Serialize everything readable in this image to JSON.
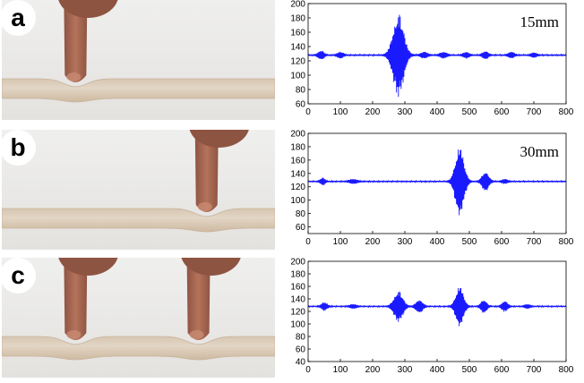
{
  "panels": [
    {
      "label": "a",
      "annotation": "15mm",
      "fingers": [
        0.27
      ],
      "chart_data": {
        "type": "line",
        "xlim": [
          0,
          800
        ],
        "ylim": [
          60,
          200
        ],
        "yticks": [
          60,
          80,
          100,
          120,
          140,
          160,
          180,
          200
        ],
        "xticks": [
          0,
          100,
          200,
          300,
          400,
          500,
          600,
          700,
          800
        ],
        "baseline": 128,
        "bursts": [
          {
            "center": 40,
            "width": 12,
            "amplitude": 6
          },
          {
            "center": 100,
            "width": 12,
            "amplitude": 4
          },
          {
            "center": 280,
            "width": 22,
            "amplitude": 58
          },
          {
            "center": 360,
            "width": 14,
            "amplitude": 4
          },
          {
            "center": 420,
            "width": 14,
            "amplitude": 4
          },
          {
            "center": 490,
            "width": 12,
            "amplitude": 4
          },
          {
            "center": 550,
            "width": 12,
            "amplitude": 5
          },
          {
            "center": 630,
            "width": 12,
            "amplitude": 4
          },
          {
            "center": 700,
            "width": 12,
            "amplitude": 3
          }
        ],
        "grid": false
      }
    },
    {
      "label": "b",
      "annotation": "30mm",
      "fingers": [
        0.75
      ],
      "chart_data": {
        "type": "line",
        "xlim": [
          0,
          800
        ],
        "ylim": [
          50,
          200
        ],
        "yticks": [
          60,
          80,
          100,
          120,
          140,
          160,
          180,
          200
        ],
        "xticks": [
          0,
          100,
          200,
          300,
          400,
          500,
          600,
          700,
          800
        ],
        "baseline": 128,
        "bursts": [
          {
            "center": 45,
            "width": 10,
            "amplitude": 5
          },
          {
            "center": 140,
            "width": 16,
            "amplitude": 3
          },
          {
            "center": 470,
            "width": 18,
            "amplitude": 52
          },
          {
            "center": 550,
            "width": 14,
            "amplitude": 14
          },
          {
            "center": 610,
            "width": 12,
            "amplitude": 3
          }
        ],
        "grid": false
      }
    },
    {
      "label": "c",
      "annotation": "",
      "fingers": [
        0.27,
        0.72
      ],
      "chart_data": {
        "type": "line",
        "xlim": [
          0,
          800
        ],
        "ylim": [
          40,
          200
        ],
        "yticks": [
          40,
          60,
          80,
          100,
          120,
          140,
          160,
          180,
          200
        ],
        "xticks": [
          0,
          100,
          200,
          300,
          400,
          500,
          600,
          700,
          800
        ],
        "baseline": 128,
        "bursts": [
          {
            "center": 50,
            "width": 12,
            "amplitude": 6
          },
          {
            "center": 140,
            "width": 14,
            "amplitude": 3
          },
          {
            "center": 280,
            "width": 18,
            "amplitude": 24
          },
          {
            "center": 345,
            "width": 14,
            "amplitude": 10
          },
          {
            "center": 470,
            "width": 16,
            "amplitude": 32
          },
          {
            "center": 545,
            "width": 12,
            "amplitude": 10
          },
          {
            "center": 610,
            "width": 12,
            "amplitude": 8
          },
          {
            "center": 680,
            "width": 12,
            "amplitude": 3
          }
        ],
        "grid": false
      }
    }
  ],
  "colors": {
    "signal": "#1a1aff",
    "axis": "#000000",
    "skin": "#b5735b",
    "skin_dark": "#8e5442",
    "tube": "#e3d6c5",
    "tube_edge": "#c8b49c",
    "background": "#e4e2df"
  }
}
